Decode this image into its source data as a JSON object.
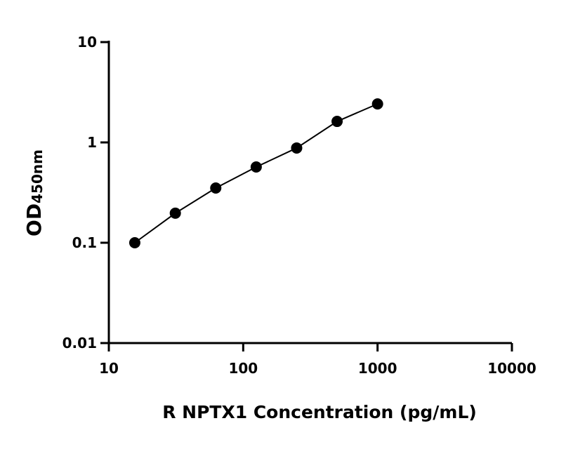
{
  "chart_data": {
    "type": "scatter",
    "title": "",
    "xlabel": "R NPTX1 Concentration (pg/mL)",
    "ylabel_main": "OD",
    "ylabel_sub": "450nm",
    "x_scale": "log",
    "y_scale": "log",
    "xlim": [
      10,
      10000
    ],
    "ylim": [
      0.01,
      10
    ],
    "x_ticks": [
      "10",
      "100",
      "1000",
      "10000"
    ],
    "y_ticks": [
      "0.01",
      "0.1",
      "1",
      "10"
    ],
    "grid": false,
    "fit_line": true,
    "marker_color": "#000000",
    "line_color": "#000000",
    "series": [
      {
        "x": [
          15.6,
          31.25,
          62.5,
          125,
          250,
          500,
          1000
        ],
        "y": [
          0.1,
          0.197,
          0.351,
          0.569,
          0.88,
          1.62,
          2.42
        ]
      }
    ]
  }
}
